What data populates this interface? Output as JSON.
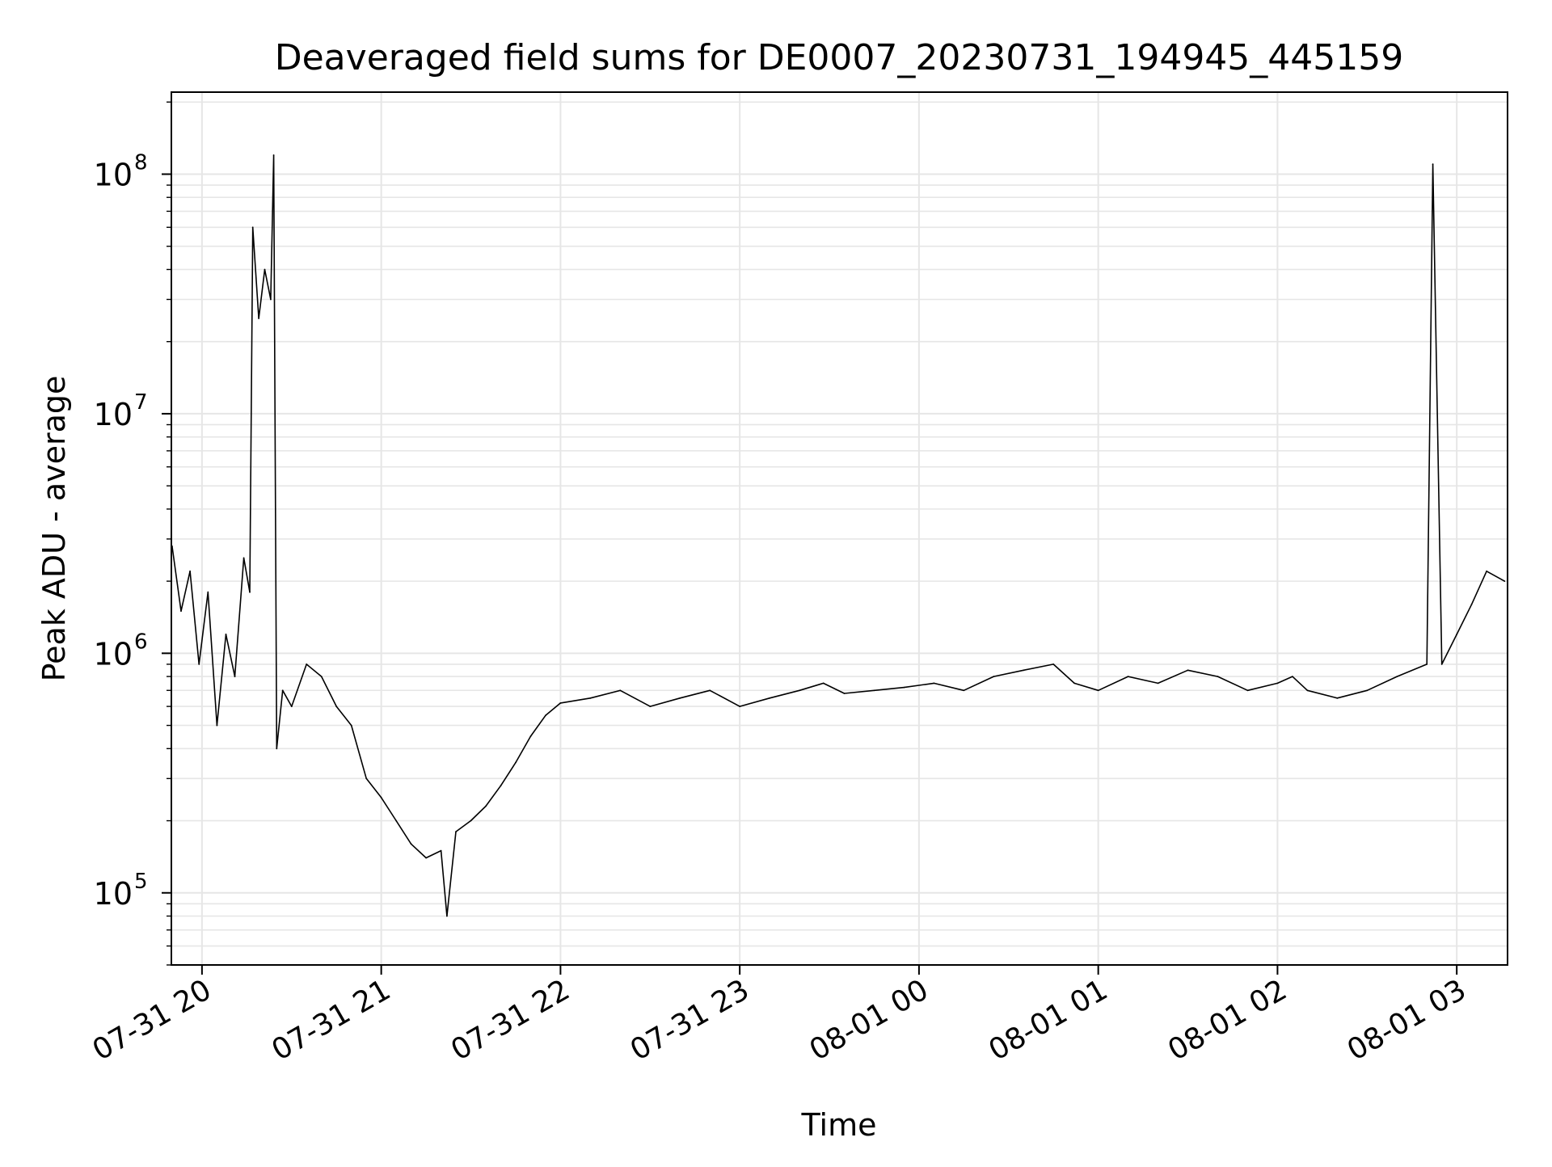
{
  "chart_data": {
    "type": "line",
    "title": "Deaveraged field sums for DE0007_20230731_194945_445159",
    "xlabel": "Time",
    "ylabel": "Peak ADU - average",
    "x_scale": "time",
    "y_scale": "log",
    "xlim": [
      "2023-07-31 19:49:45",
      "2023-08-01 03:17:00"
    ],
    "ylim": [
      50000,
      220000000
    ],
    "x_ticks": [
      {
        "value": "2023-07-31 20:00",
        "label": "07-31 20"
      },
      {
        "value": "2023-07-31 21:00",
        "label": "07-31 21"
      },
      {
        "value": "2023-07-31 22:00",
        "label": "07-31 22"
      },
      {
        "value": "2023-07-31 23:00",
        "label": "07-31 23"
      },
      {
        "value": "2023-08-01 00:00",
        "label": "08-01 00"
      },
      {
        "value": "2023-08-01 01:00",
        "label": "08-01 01"
      },
      {
        "value": "2023-08-01 02:00",
        "label": "08-01 02"
      },
      {
        "value": "2023-08-01 03:00",
        "label": "08-01 03"
      }
    ],
    "y_ticks": [
      {
        "value": 100000,
        "base": "10",
        "exp": "5"
      },
      {
        "value": 1000000,
        "base": "10",
        "exp": "6"
      },
      {
        "value": 10000000,
        "base": "10",
        "exp": "7"
      },
      {
        "value": 100000000,
        "base": "10",
        "exp": "8"
      }
    ],
    "grid": true,
    "legend": "none",
    "line_color": "#000000",
    "series": [
      {
        "x": [
          "2023-07-31 19:50",
          "2023-07-31 19:53",
          "2023-07-31 19:56",
          "2023-07-31 19:59",
          "2023-07-31 20:02",
          "2023-07-31 20:05",
          "2023-07-31 20:08",
          "2023-07-31 20:11",
          "2023-07-31 20:14",
          "2023-07-31 20:16",
          "2023-07-31 20:17",
          "2023-07-31 20:19",
          "2023-07-31 20:21",
          "2023-07-31 20:23",
          "2023-07-31 20:24",
          "2023-07-31 20:25",
          "2023-07-31 20:27",
          "2023-07-31 20:30",
          "2023-07-31 20:35",
          "2023-07-31 20:40",
          "2023-07-31 20:45",
          "2023-07-31 20:50",
          "2023-07-31 20:55",
          "2023-07-31 21:00",
          "2023-07-31 21:05",
          "2023-07-31 21:10",
          "2023-07-31 21:15",
          "2023-07-31 21:20",
          "2023-07-31 21:22",
          "2023-07-31 21:25",
          "2023-07-31 21:30",
          "2023-07-31 21:35",
          "2023-07-31 21:40",
          "2023-07-31 21:45",
          "2023-07-31 21:50",
          "2023-07-31 21:55",
          "2023-07-31 22:00",
          "2023-07-31 22:10",
          "2023-07-31 22:20",
          "2023-07-31 22:30",
          "2023-07-31 22:40",
          "2023-07-31 22:50",
          "2023-07-31 23:00",
          "2023-07-31 23:10",
          "2023-07-31 23:20",
          "2023-07-31 23:28",
          "2023-07-31 23:35",
          "2023-07-31 23:45",
          "2023-07-31 23:55",
          "2023-08-01 00:05",
          "2023-08-01 00:15",
          "2023-08-01 00:25",
          "2023-08-01 00:35",
          "2023-08-01 00:45",
          "2023-08-01 00:52",
          "2023-08-01 01:00",
          "2023-08-01 01:10",
          "2023-08-01 01:20",
          "2023-08-01 01:30",
          "2023-08-01 01:40",
          "2023-08-01 01:50",
          "2023-08-01 02:00",
          "2023-08-01 02:05",
          "2023-08-01 02:10",
          "2023-08-01 02:20",
          "2023-08-01 02:30",
          "2023-08-01 02:40",
          "2023-08-01 02:50",
          "2023-08-01 02:52",
          "2023-08-01 02:55",
          "2023-08-01 03:00",
          "2023-08-01 03:05",
          "2023-08-01 03:10",
          "2023-08-01 03:16"
        ],
        "values": [
          2800000,
          1500000,
          2200000,
          900000,
          1800000,
          500000,
          1200000,
          800000,
          2500000,
          1800000,
          60000000,
          25000000,
          40000000,
          30000000,
          120000000,
          400000,
          700000,
          600000,
          900000,
          800000,
          600000,
          500000,
          300000,
          250000,
          200000,
          160000,
          140000,
          150000,
          80000,
          180000,
          200000,
          230000,
          280000,
          350000,
          450000,
          550000,
          620000,
          650000,
          700000,
          600000,
          650000,
          700000,
          600000,
          650000,
          700000,
          750000,
          680000,
          700000,
          720000,
          750000,
          700000,
          800000,
          850000,
          900000,
          750000,
          700000,
          800000,
          750000,
          850000,
          800000,
          700000,
          750000,
          800000,
          700000,
          650000,
          700000,
          800000,
          900000,
          110000000,
          900000,
          1200000,
          1600000,
          2200000,
          2000000
        ]
      }
    ]
  }
}
